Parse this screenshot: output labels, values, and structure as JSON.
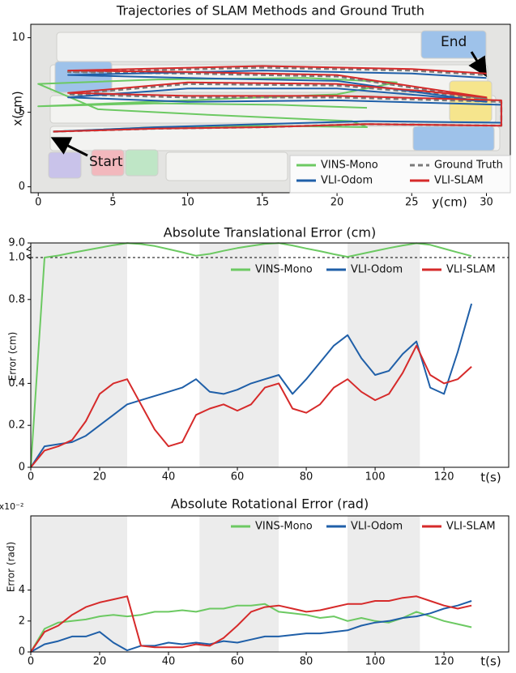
{
  "chart_data": [
    {
      "type": "line",
      "title": "Trajectories of SLAM Methods and Ground Truth",
      "x_label": "y(cm)",
      "y_label": "x(cm)",
      "xlim": [
        -0.5,
        31.6
      ],
      "ylim": [
        -0.4,
        10.9
      ],
      "xticks": [
        0,
        5,
        10,
        15,
        20,
        25,
        30
      ],
      "yticks": [
        0,
        5,
        10
      ],
      "annotations": [
        "Start",
        "End"
      ],
      "series": [
        {
          "name": "VINS-Mono",
          "color": "#6cc962",
          "dash": false,
          "x": [
            1,
            8,
            15,
            22,
            21,
            12,
            4,
            0,
            8,
            18,
            24,
            20,
            10,
            0,
            8,
            16,
            22
          ],
          "values": [
            3.7,
            4.0,
            4.1,
            4.0,
            4.4,
            4.8,
            5.2,
            6.9,
            7.2,
            7.3,
            7.0,
            6.2,
            5.8,
            5.4,
            5.6,
            5.5,
            5.3
          ]
        },
        {
          "name": "Ground Truth",
          "color": "#7a7a7a",
          "dash": true,
          "x": [
            1,
            8,
            15,
            22,
            31,
            31,
            20,
            10,
            2,
            10,
            20,
            26,
            30,
            20,
            10,
            2,
            15,
            25,
            30
          ],
          "values": [
            3.7,
            3.9,
            4.0,
            4.2,
            4.1,
            5.7,
            6.0,
            6.0,
            6.2,
            6.9,
            6.8,
            6.3,
            5.9,
            7.4,
            7.6,
            7.7,
            8.0,
            7.8,
            7.5
          ]
        },
        {
          "name": "VLI-Odom",
          "color": "#1f5fa8",
          "dash": false,
          "x": [
            1,
            8,
            15,
            22,
            31,
            31,
            20,
            10,
            2,
            10,
            20,
            26,
            30,
            20,
            10,
            2,
            15,
            25,
            30
          ],
          "values": [
            3.7,
            4.0,
            4.2,
            4.4,
            4.3,
            5.5,
            5.8,
            5.7,
            6.0,
            6.6,
            6.6,
            6.1,
            5.7,
            7.1,
            7.3,
            7.5,
            7.8,
            7.6,
            7.3
          ]
        },
        {
          "name": "VLI-SLAM",
          "color": "#d62a2a",
          "dash": false,
          "x": [
            1,
            8,
            15,
            22,
            31,
            31,
            20,
            10,
            2,
            10,
            20,
            26,
            30,
            20,
            10,
            2,
            15,
            25,
            30
          ],
          "values": [
            3.7,
            3.9,
            4.0,
            4.2,
            4.1,
            5.8,
            6.1,
            6.1,
            6.3,
            7.0,
            6.9,
            6.4,
            6.0,
            7.5,
            7.7,
            7.8,
            8.1,
            7.9,
            7.6
          ]
        }
      ]
    },
    {
      "type": "line",
      "title": "Absolute Translational Error (cm)",
      "x_label": "t(s)",
      "y_label": "Error (cm)",
      "xlim": [
        0,
        138.8
      ],
      "ylim": [
        0,
        9.0
      ],
      "ybreak": 1.0,
      "xticks": [
        0,
        20,
        40,
        60,
        80,
        100,
        120
      ],
      "yticks": [
        0,
        0.2,
        0.4,
        0.8,
        {
          "value": 1,
          "label": "1.0"
        },
        {
          "value": 9,
          "label": "9.0"
        }
      ],
      "shaded": [
        [
          0,
          28
        ],
        [
          49,
          72
        ],
        [
          92,
          113
        ]
      ],
      "x": [
        0,
        4,
        8,
        12,
        16,
        20,
        24,
        28,
        32,
        36,
        40,
        44,
        48,
        52,
        56,
        60,
        64,
        68,
        72,
        76,
        80,
        84,
        88,
        92,
        96,
        100,
        104,
        108,
        112,
        116,
        120,
        124,
        128
      ],
      "series": [
        {
          "name": "VINS-Mono",
          "color": "#6cc962",
          "values": [
            0,
            1.0,
            2.1,
            3.6,
            5.0,
            6.4,
            7.8,
            8.9,
            8.4,
            7.3,
            5.6,
            3.9,
            2.0,
            3.0,
            4.7,
            6.2,
            7.4,
            8.5,
            8.9,
            7.6,
            6.0,
            4.5,
            2.8,
            1.4,
            3.0,
            4.6,
            6.2,
            7.6,
            8.8,
            8.0,
            5.9,
            3.8,
            1.8
          ]
        },
        {
          "name": "VLI-Odom",
          "color": "#1f5fa8",
          "values": [
            0,
            0.1,
            0.11,
            0.12,
            0.15,
            0.2,
            0.25,
            0.3,
            0.32,
            0.34,
            0.36,
            0.38,
            0.42,
            0.36,
            0.35,
            0.37,
            0.4,
            0.42,
            0.44,
            0.35,
            0.42,
            0.5,
            0.58,
            0.63,
            0.52,
            0.44,
            0.46,
            0.54,
            0.6,
            0.38,
            0.35,
            0.55,
            0.78
          ]
        },
        {
          "name": "VLI-SLAM",
          "color": "#d62a2a",
          "values": [
            0,
            0.08,
            0.1,
            0.13,
            0.22,
            0.35,
            0.4,
            0.42,
            0.3,
            0.18,
            0.1,
            0.12,
            0.25,
            0.28,
            0.3,
            0.27,
            0.3,
            0.38,
            0.4,
            0.28,
            0.26,
            0.3,
            0.38,
            0.42,
            0.36,
            0.32,
            0.35,
            0.45,
            0.58,
            0.44,
            0.4,
            0.42,
            0.48
          ]
        }
      ]
    },
    {
      "type": "line",
      "title": "Absolute Rotational Error (rad)",
      "x_label": "t(s)",
      "y_label": "Error (rad)",
      "y_multiplier": "x10⁻²",
      "xlim": [
        0,
        138.8
      ],
      "ylim": [
        0,
        8.8
      ],
      "xticks": [
        0,
        20,
        40,
        60,
        80,
        100,
        120
      ],
      "yticks": [
        0,
        2,
        4
      ],
      "shaded": [
        [
          0,
          28
        ],
        [
          49,
          72
        ],
        [
          92,
          113
        ]
      ],
      "x": [
        0,
        4,
        8,
        12,
        16,
        20,
        24,
        28,
        32,
        36,
        40,
        44,
        48,
        52,
        56,
        60,
        64,
        68,
        72,
        76,
        80,
        84,
        88,
        92,
        96,
        100,
        104,
        108,
        112,
        116,
        120,
        124,
        128
      ],
      "series": [
        {
          "name": "VINS-Mono",
          "color": "#6cc962",
          "values": [
            0,
            1.5,
            1.9,
            2.0,
            2.1,
            2.3,
            2.4,
            2.3,
            2.4,
            2.6,
            2.6,
            2.7,
            2.6,
            2.8,
            2.8,
            3.0,
            3.0,
            3.1,
            2.6,
            2.5,
            2.4,
            2.2,
            2.3,
            2.0,
            2.2,
            2.0,
            1.9,
            2.2,
            2.6,
            2.3,
            2.0,
            1.8,
            1.6
          ]
        },
        {
          "name": "VLI-Odom",
          "color": "#1f5fa8",
          "values": [
            0,
            0.5,
            0.7,
            1.0,
            1.0,
            1.3,
            0.6,
            0.1,
            0.4,
            0.4,
            0.6,
            0.5,
            0.6,
            0.5,
            0.7,
            0.6,
            0.8,
            1.0,
            1.0,
            1.1,
            1.2,
            1.2,
            1.3,
            1.4,
            1.7,
            1.9,
            2.0,
            2.2,
            2.3,
            2.5,
            2.8,
            3.0,
            3.3
          ]
        },
        {
          "name": "VLI-SLAM",
          "color": "#d62a2a",
          "values": [
            0,
            1.3,
            1.7,
            2.4,
            2.9,
            3.2,
            3.4,
            3.6,
            0.4,
            0.3,
            0.3,
            0.3,
            0.5,
            0.4,
            0.9,
            1.7,
            2.6,
            2.9,
            3.0,
            2.8,
            2.6,
            2.7,
            2.9,
            3.1,
            3.1,
            3.3,
            3.3,
            3.5,
            3.6,
            3.3,
            3.0,
            2.8,
            3.0
          ]
        }
      ]
    }
  ]
}
